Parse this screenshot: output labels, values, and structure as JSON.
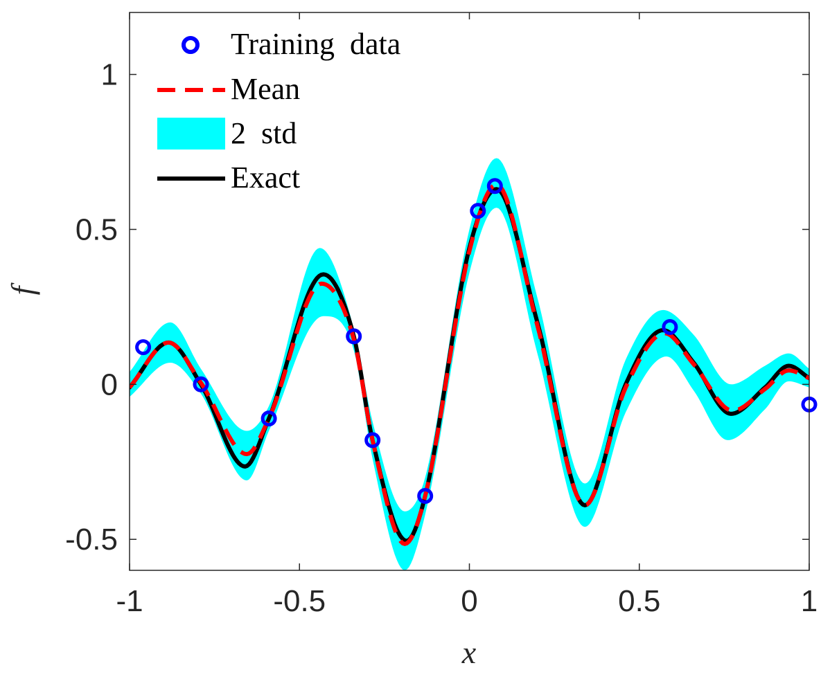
{
  "chart_data": {
    "type": "line",
    "title": "",
    "xlabel": "x",
    "ylabel": "f",
    "xlim": [
      -1,
      1
    ],
    "ylim": [
      -0.6,
      1.2
    ],
    "xticks": [
      -1,
      -0.5,
      0,
      0.5,
      1
    ],
    "xtick_labels": [
      "-1",
      "-0.5",
      "0",
      "0.5",
      "1"
    ],
    "yticks": [
      -0.5,
      0,
      0.5,
      1
    ],
    "ytick_labels": [
      "-0.5",
      "0",
      "0.5",
      "1"
    ],
    "grid": false,
    "legend_position": "top-left",
    "legend": [
      {
        "label": "Training  data",
        "style": "circle-marker",
        "color": "#0000ff"
      },
      {
        "label": "Mean",
        "style": "dashed-line",
        "color": "#ff0000"
      },
      {
        "label": "2  std",
        "style": "filled-band",
        "color": "#00ffff"
      },
      {
        "label": "Exact",
        "style": "solid-line",
        "color": "#000000"
      }
    ],
    "colors": {
      "band": "#00ffff",
      "mean": "#ff0000",
      "exact": "#000000",
      "training": "#0000ff",
      "axes": "#262626"
    },
    "training_data": [
      {
        "x": -0.96,
        "y": 0.12
      },
      {
        "x": -0.79,
        "y": 0.0
      },
      {
        "x": -0.59,
        "y": -0.11
      },
      {
        "x": -0.34,
        "y": 0.155
      },
      {
        "x": -0.285,
        "y": -0.18
      },
      {
        "x": -0.13,
        "y": -0.36
      },
      {
        "x": 0.025,
        "y": 0.56
      },
      {
        "x": 0.075,
        "y": 0.64
      },
      {
        "x": 0.59,
        "y": 0.185
      },
      {
        "x": 1.0,
        "y": -0.065
      }
    ],
    "exact_keypoints": [
      {
        "x": -1.0,
        "y": -0.01
      },
      {
        "x": -0.885,
        "y": 0.135
      },
      {
        "x": -0.79,
        "y": 0.0
      },
      {
        "x": -0.66,
        "y": -0.265
      },
      {
        "x": -0.59,
        "y": -0.11
      },
      {
        "x": -0.43,
        "y": 0.355
      },
      {
        "x": -0.34,
        "y": 0.155
      },
      {
        "x": -0.285,
        "y": -0.18
      },
      {
        "x": -0.185,
        "y": -0.505
      },
      {
        "x": -0.13,
        "y": -0.36
      },
      {
        "x": 0.0,
        "y": 0.44
      },
      {
        "x": 0.08,
        "y": 0.63
      },
      {
        "x": 0.2,
        "y": 0.2
      },
      {
        "x": 0.34,
        "y": -0.39
      },
      {
        "x": 0.46,
        "y": 0.0
      },
      {
        "x": 0.57,
        "y": 0.175
      },
      {
        "x": 0.66,
        "y": 0.07
      },
      {
        "x": 0.77,
        "y": -0.095
      },
      {
        "x": 0.87,
        "y": -0.01
      },
      {
        "x": 0.94,
        "y": 0.06
      },
      {
        "x": 1.0,
        "y": 0.02
      }
    ],
    "mean_keypoints": [
      {
        "x": -1.0,
        "y": -0.01
      },
      {
        "x": -0.885,
        "y": 0.135
      },
      {
        "x": -0.79,
        "y": 0.005
      },
      {
        "x": -0.655,
        "y": -0.225
      },
      {
        "x": -0.59,
        "y": -0.11
      },
      {
        "x": -0.435,
        "y": 0.325
      },
      {
        "x": -0.34,
        "y": 0.145
      },
      {
        "x": -0.285,
        "y": -0.18
      },
      {
        "x": -0.19,
        "y": -0.515
      },
      {
        "x": -0.13,
        "y": -0.36
      },
      {
        "x": 0.0,
        "y": 0.43
      },
      {
        "x": 0.08,
        "y": 0.645
      },
      {
        "x": 0.2,
        "y": 0.19
      },
      {
        "x": 0.34,
        "y": -0.39
      },
      {
        "x": 0.46,
        "y": -0.01
      },
      {
        "x": 0.575,
        "y": 0.165
      },
      {
        "x": 0.66,
        "y": 0.065
      },
      {
        "x": 0.775,
        "y": -0.085
      },
      {
        "x": 0.87,
        "y": -0.015
      },
      {
        "x": 0.94,
        "y": 0.045
      },
      {
        "x": 1.0,
        "y": 0.02
      }
    ],
    "std2_upper_keypoints": [
      {
        "x": -1.0,
        "y": 0.04
      },
      {
        "x": -0.88,
        "y": 0.2
      },
      {
        "x": -0.79,
        "y": 0.05
      },
      {
        "x": -0.655,
        "y": -0.15
      },
      {
        "x": -0.59,
        "y": -0.07
      },
      {
        "x": -0.44,
        "y": 0.44
      },
      {
        "x": -0.34,
        "y": 0.18
      },
      {
        "x": -0.285,
        "y": -0.12
      },
      {
        "x": -0.19,
        "y": -0.41
      },
      {
        "x": -0.13,
        "y": -0.3
      },
      {
        "x": 0.0,
        "y": 0.5
      },
      {
        "x": 0.08,
        "y": 0.73
      },
      {
        "x": 0.2,
        "y": 0.28
      },
      {
        "x": 0.34,
        "y": -0.32
      },
      {
        "x": 0.46,
        "y": 0.08
      },
      {
        "x": 0.57,
        "y": 0.24
      },
      {
        "x": 0.66,
        "y": 0.16
      },
      {
        "x": 0.77,
        "y": 0.0
      },
      {
        "x": 0.87,
        "y": 0.06
      },
      {
        "x": 0.94,
        "y": 0.1
      },
      {
        "x": 1.0,
        "y": 0.05
      }
    ],
    "std2_lower_keypoints": [
      {
        "x": -1.0,
        "y": -0.04
      },
      {
        "x": -0.88,
        "y": 0.07
      },
      {
        "x": -0.79,
        "y": -0.03
      },
      {
        "x": -0.655,
        "y": -0.31
      },
      {
        "x": -0.59,
        "y": -0.15
      },
      {
        "x": -0.43,
        "y": 0.22
      },
      {
        "x": -0.34,
        "y": 0.11
      },
      {
        "x": -0.285,
        "y": -0.24
      },
      {
        "x": -0.19,
        "y": -0.6
      },
      {
        "x": -0.13,
        "y": -0.42
      },
      {
        "x": 0.0,
        "y": 0.36
      },
      {
        "x": 0.08,
        "y": 0.57
      },
      {
        "x": 0.2,
        "y": 0.1
      },
      {
        "x": 0.34,
        "y": -0.46
      },
      {
        "x": 0.46,
        "y": -0.09
      },
      {
        "x": 0.58,
        "y": 0.09
      },
      {
        "x": 0.66,
        "y": -0.02
      },
      {
        "x": 0.76,
        "y": -0.18
      },
      {
        "x": 0.87,
        "y": -0.08
      },
      {
        "x": 0.94,
        "y": 0.01
      },
      {
        "x": 1.0,
        "y": -0.01
      }
    ]
  }
}
